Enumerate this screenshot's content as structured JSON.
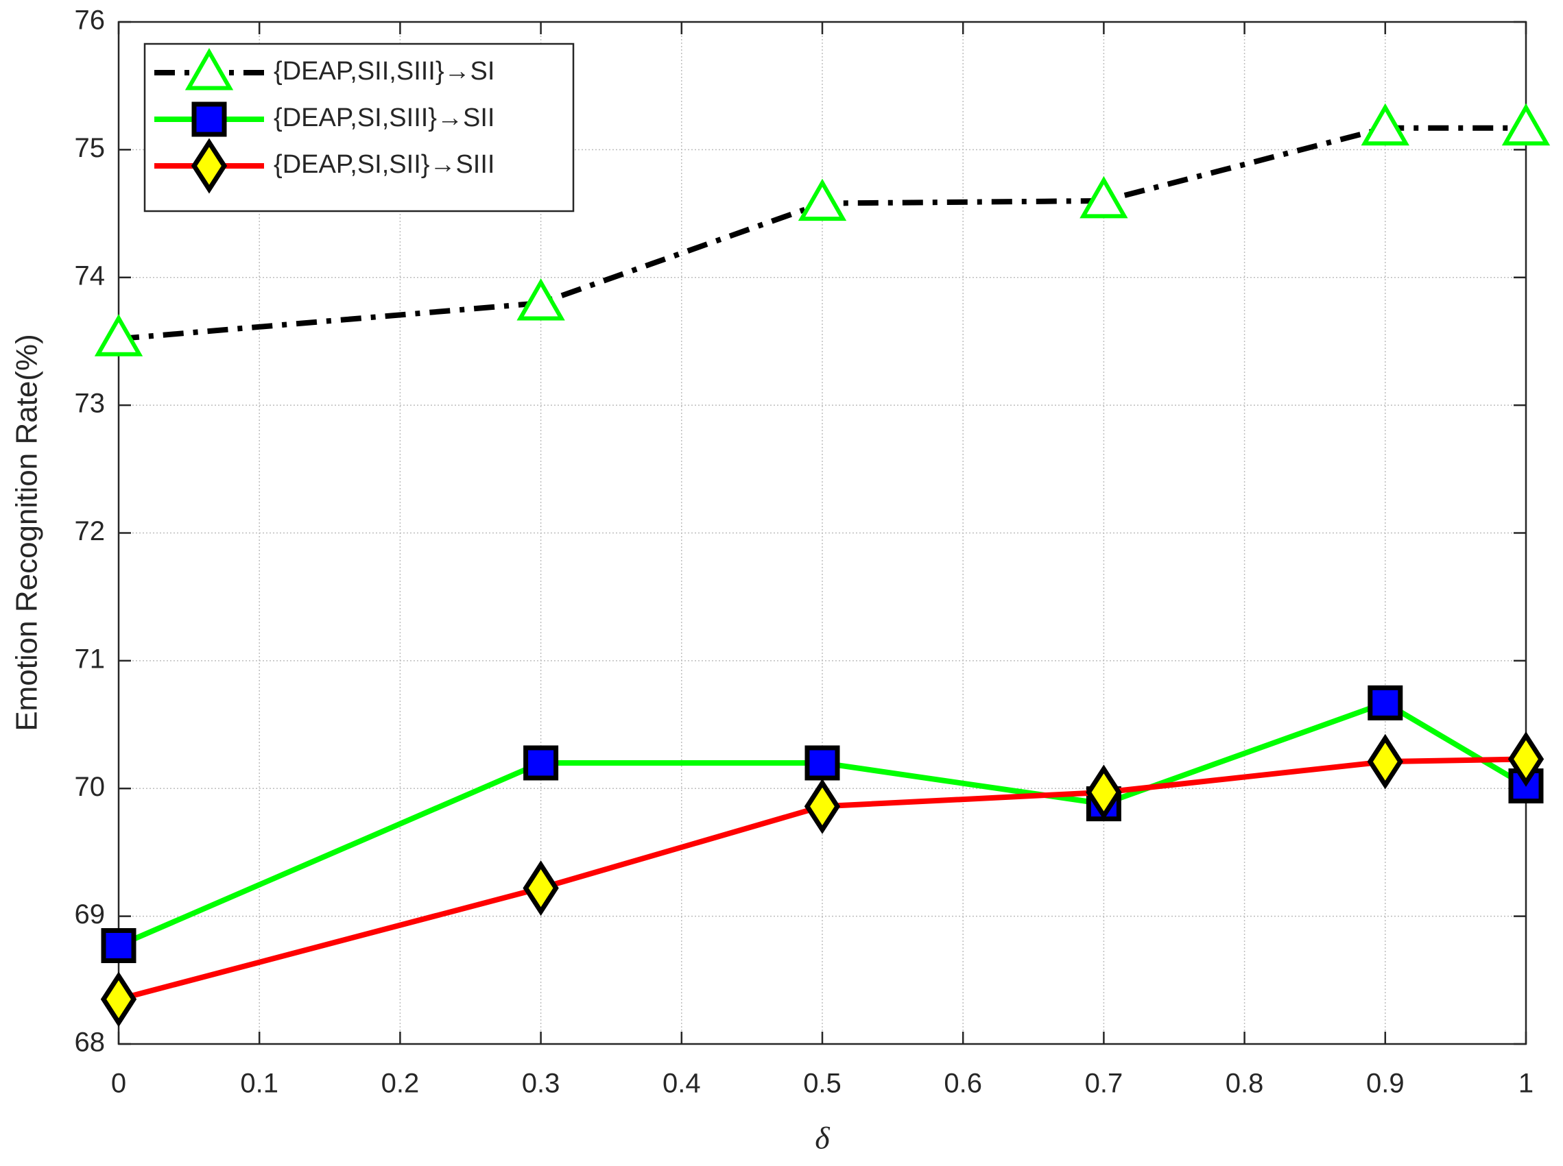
{
  "chart_data": {
    "type": "line",
    "x_label": "δ",
    "y_label": "Emotion Recognition Rate(%)",
    "x": [
      0,
      0.3,
      0.5,
      0.7,
      0.9,
      1
    ],
    "xlim": [
      0,
      1
    ],
    "xticks": [
      0,
      0.1,
      0.2,
      0.3,
      0.4,
      0.5,
      0.6,
      0.7,
      0.8,
      0.9,
      1
    ],
    "ylim": [
      68,
      76
    ],
    "yticks": [
      68,
      69,
      70,
      71,
      72,
      73,
      74,
      75,
      76
    ],
    "grid": true,
    "legend": "northwest",
    "series": [
      {
        "name": "{DEAP,SII,SIII}→SI",
        "color": "#000000",
        "line_style": "dash-dot",
        "marker": "triangle",
        "marker_face": "#ffffff",
        "marker_edge": "#00ff00",
        "values": [
          73.52,
          73.8,
          74.58,
          74.6,
          75.17,
          75.17
        ]
      },
      {
        "name": "{DEAP,SI,SIII}→SII",
        "color": "#00ff00",
        "line_style": "solid",
        "marker": "square",
        "marker_face": "#0000ff",
        "marker_edge": "#000000",
        "values": [
          68.77,
          70.2,
          70.2,
          69.88,
          70.67,
          70.02
        ]
      },
      {
        "name": "{DEAP,SI,SII}→SIII",
        "color": "#ff0000",
        "line_style": "solid",
        "marker": "diamond",
        "marker_face": "#ffff00",
        "marker_edge": "#000000",
        "values": [
          68.35,
          69.22,
          69.86,
          69.97,
          70.21,
          70.23
        ]
      }
    ]
  }
}
